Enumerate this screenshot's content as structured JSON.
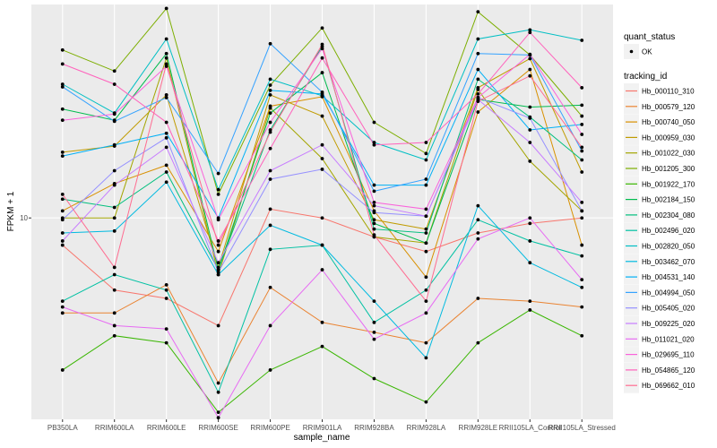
{
  "chart_data": {
    "type": "line",
    "title": "",
    "xlabel": "sample_name",
    "ylabel": "FPKM + 1",
    "y_scale": "log10",
    "ylim": [
      3.27,
      32.7
    ],
    "y_ticks": [
      {
        "value": 10,
        "label": "10"
      }
    ],
    "grid": true,
    "categories": [
      "PB350LA",
      "RRIM600LA",
      "RRIM600LE",
      "RRIM600SE",
      "RRIM600PE",
      "RRIM901LA",
      "RRIM928BA",
      "RRIM928LA",
      "RRIM928LE",
      "RRII105LA_Control",
      "RRII105LA_Stressed"
    ],
    "legend_position": "right",
    "shape_legend": {
      "title": "quant_status",
      "items": [
        {
          "label": "OK"
        }
      ]
    },
    "color_legend_title": "tracking_id",
    "series": [
      {
        "name": "Hb_000110_310",
        "color": "#F8766D",
        "values": [
          8.6,
          6.7,
          6.4,
          5.5,
          10.5,
          10.0,
          9.0,
          8.3,
          9.2,
          9.7,
          10.0
        ]
      },
      {
        "name": "Hb_000579_120",
        "color": "#EA8331",
        "values": [
          5.9,
          5.9,
          6.9,
          4.0,
          6.8,
          5.6,
          5.3,
          5.0,
          6.4,
          6.3,
          6.1
        ]
      },
      {
        "name": "Hb_000740_050",
        "color": "#D89000",
        "values": [
          10.4,
          12.1,
          13.4,
          8.3,
          18.6,
          19.6,
          10.4,
          7.2,
          18.0,
          22.8,
          8.6
        ]
      },
      {
        "name": "Hb_000959_030",
        "color": "#C09B00",
        "values": [
          14.4,
          14.9,
          19.8,
          7.6,
          19.8,
          17.6,
          9.9,
          9.4,
          20.6,
          24.2,
          12.9
        ]
      },
      {
        "name": "Hb_001022_030",
        "color": "#A3A500",
        "values": [
          10.0,
          10.0,
          24.3,
          7.3,
          18.4,
          13.9,
          9.0,
          8.7,
          20.4,
          13.7,
          10.4
        ]
      },
      {
        "name": "Hb_001205_300",
        "color": "#7CAE00",
        "values": [
          25.4,
          22.6,
          32.0,
          11.4,
          20.9,
          28.7,
          17.0,
          14.3,
          31.4,
          24.7,
          17.6
        ]
      },
      {
        "name": "Hb_001922_170",
        "color": "#39B600",
        "values": [
          4.3,
          5.2,
          5.0,
          3.4,
          4.3,
          4.9,
          4.1,
          3.6,
          5.0,
          6.0,
          5.2
        ]
      },
      {
        "name": "Hb_002184_150",
        "color": "#00BB4E",
        "values": [
          18.3,
          17.2,
          24.9,
          7.5,
          17.9,
          22.4,
          9.7,
          8.7,
          19.3,
          18.5,
          18.7
        ]
      },
      {
        "name": "Hb_002304_080",
        "color": "#00BF7D",
        "values": [
          11.1,
          10.6,
          12.9,
          7.5,
          16.3,
          25.9,
          9.4,
          9.2,
          21.6,
          17.5,
          13.8
        ]
      },
      {
        "name": "Hb_002496_020",
        "color": "#00C1A3",
        "values": [
          6.3,
          7.3,
          6.7,
          3.8,
          8.4,
          8.6,
          5.6,
          6.7,
          9.9,
          8.8,
          8.1
        ]
      },
      {
        "name": "Hb_002820_050",
        "color": "#00BFC4",
        "values": [
          21.0,
          17.9,
          27.0,
          11.7,
          21.6,
          19.7,
          15.2,
          13.8,
          27.0,
          28.4,
          26.8
        ]
      },
      {
        "name": "Hb_003462_070",
        "color": "#00BAE0",
        "values": [
          9.2,
          9.3,
          12.2,
          7.3,
          9.6,
          8.6,
          6.3,
          4.6,
          10.7,
          7.8,
          6.8
        ]
      },
      {
        "name": "Hb_004531_140",
        "color": "#00B0F6",
        "values": [
          14.1,
          15.0,
          16.0,
          10.0,
          20.3,
          19.9,
          12.0,
          12.0,
          22.8,
          16.3,
          16.8
        ]
      },
      {
        "name": "Hb_004994_050",
        "color": "#35A2FF",
        "values": [
          20.7,
          17.1,
          19.5,
          12.8,
          26.3,
          20.1,
          11.6,
          12.4,
          24.9,
          24.7,
          14.5
        ]
      },
      {
        "name": "Hb_005405_020",
        "color": "#9590FF",
        "values": [
          9.9,
          13.0,
          15.6,
          7.4,
          12.4,
          13.1,
          10.3,
          10.1,
          19.5,
          17.4,
          10.4
        ]
      },
      {
        "name": "Hb_009225_020",
        "color": "#C77CFF",
        "values": [
          8.8,
          12.0,
          14.8,
          7.8,
          13.0,
          15.0,
          10.7,
          10.1,
          19.3,
          15.2,
          10.9
        ]
      },
      {
        "name": "Hb_011021_020",
        "color": "#E76BF3",
        "values": [
          6.1,
          5.5,
          5.4,
          3.3,
          5.5,
          7.5,
          5.1,
          5.9,
          8.9,
          10.0,
          7.1
        ]
      },
      {
        "name": "Hb_029695_110",
        "color": "#FA62DB",
        "values": [
          17.2,
          17.8,
          23.2,
          9.9,
          17.0,
          25.6,
          10.9,
          10.5,
          19.5,
          24.8,
          15.9
        ]
      },
      {
        "name": "Hb_054865_120",
        "color": "#FF62BC",
        "values": [
          23.5,
          21.0,
          17.0,
          8.8,
          14.7,
          24.3,
          15.0,
          15.2,
          19.9,
          28.0,
          20.6
        ]
      },
      {
        "name": "Hb_069662_010",
        "color": "#FF6C91",
        "values": [
          11.4,
          7.6,
          23.5,
          8.6,
          16.1,
          26.2,
          9.1,
          6.3,
          19.1,
          22.0,
          14.8
        ]
      }
    ]
  }
}
